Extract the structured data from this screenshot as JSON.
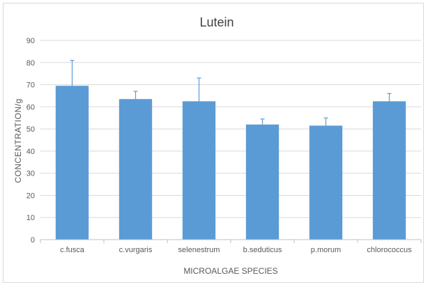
{
  "chart_data": {
    "type": "bar",
    "title": "Lutein",
    "xlabel": "MICROALGAE SPECIES",
    "ylabel": "CONCENTRATION/g",
    "categories": [
      "c.fusca",
      "c.vurgaris",
      "selenestrum",
      "b.seduticus",
      "p.morum",
      "chlorococcus"
    ],
    "values": [
      69.5,
      63.5,
      62.5,
      52,
      51.5,
      62.5
    ],
    "error_upper": [
      81,
      67,
      73,
      54.5,
      55,
      66
    ],
    "ylim": [
      0,
      90
    ],
    "yticks": [
      0,
      10,
      20,
      30,
      40,
      50,
      60,
      70,
      80,
      90
    ],
    "grid": true,
    "legend": "none",
    "bar_color": "#5b9bd5",
    "grid_color": "#d9d9d9",
    "error_bar_color": "#5b9bd5"
  }
}
